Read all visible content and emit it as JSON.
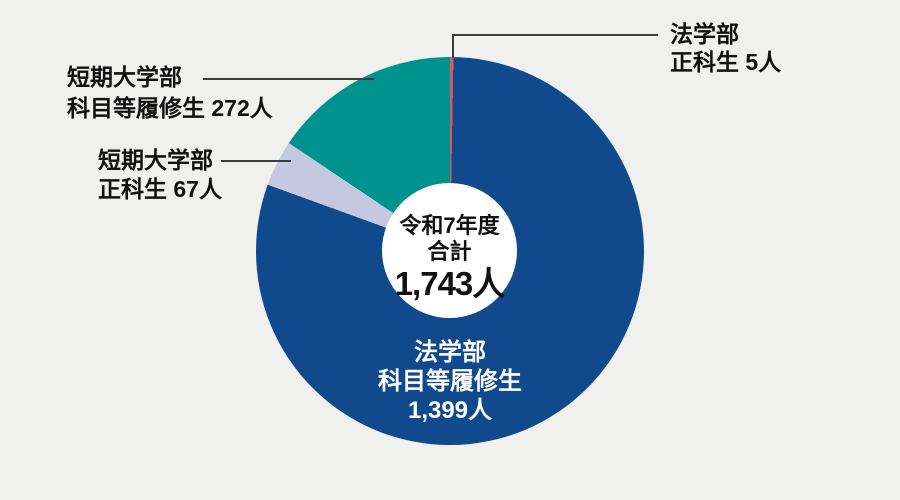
{
  "page": {
    "background": "#f0f0ee"
  },
  "chart_data": {
    "type": "pie",
    "subtype": "donut",
    "title": "令和7年度 合計 1,743人",
    "total": 1743,
    "unit": "人",
    "direction": "clockwise",
    "start_angle_deg": 0,
    "legend_position": "external-callouts",
    "center_label": {
      "line1": "令和7年度",
      "line2": "合計",
      "value": "1,743人"
    },
    "segments": [
      {
        "name": "法学部 正科生",
        "value": 5,
        "color": "#d85a60",
        "label_lines": [
          "法学部",
          "正科生 5人"
        ],
        "label_placement": "outside-right"
      },
      {
        "name": "法学部 科目等履修生",
        "value": 1399,
        "color": "#10498c",
        "label_lines": [
          "法学部",
          "科目等履修生",
          "1,399人"
        ],
        "label_placement": "inside"
      },
      {
        "name": "短期大学部 正科生",
        "value": 67,
        "color": "#c4c8e0",
        "label_lines": [
          "短期大学部",
          "正科生 67人"
        ],
        "label_placement": "outside-left"
      },
      {
        "name": "短期大学部 科目等履修生",
        "value": 272,
        "color": "#00928d",
        "label_lines": [
          "短期大学部",
          "科目等履修生 272人"
        ],
        "label_placement": "outside-left"
      }
    ]
  }
}
